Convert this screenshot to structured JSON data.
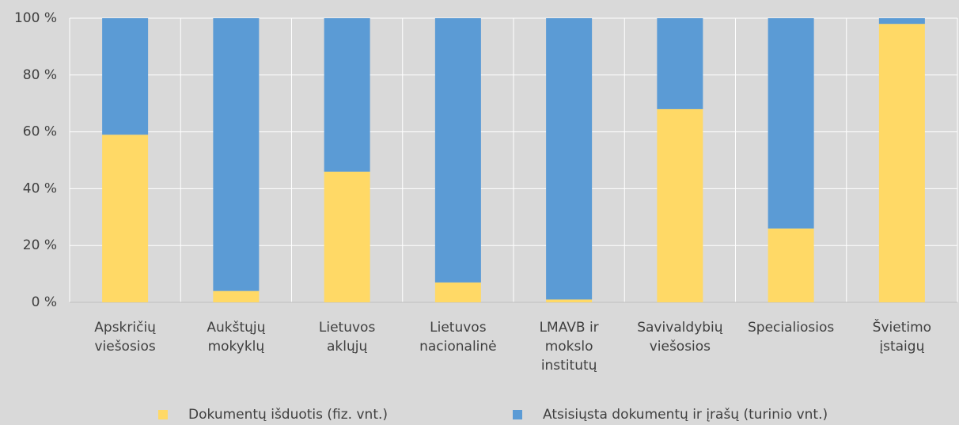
{
  "chart_data": {
    "type": "stacked_bar",
    "categories": [
      "Apskričių\nviešosios",
      "Aukštųjų\nmokyklų",
      "Lietuvos\naklųjų",
      "Lietuvos\nnacionalinė",
      "LMAVB ir\nmokslo\ninstitutų",
      "Savivaldybių\nviešosios",
      "Specialiosios",
      "Švietimo\nįstaigų"
    ],
    "series": [
      {
        "name": "Dokumentų išduotis (fiz. vnt.)",
        "color": "#ffd966",
        "values": [
          59,
          4,
          46,
          7,
          1,
          68,
          26,
          98
        ]
      },
      {
        "name": "Atsisiųsta dokumentų ir įrašų (turinio vnt.)",
        "color": "#5b9bd5",
        "values": [
          41,
          96,
          54,
          93,
          99,
          32,
          74,
          2
        ]
      }
    ],
    "ylim": [
      0,
      100
    ],
    "yticks": [
      {
        "value": 0,
        "label": "0 %"
      },
      {
        "value": 20,
        "label": "20 %"
      },
      {
        "value": 40,
        "label": "40 %"
      },
      {
        "value": 60,
        "label": "60 %"
      },
      {
        "value": 80,
        "label": "80 %"
      },
      {
        "value": 100,
        "label": "100 %"
      }
    ],
    "grid": true,
    "legend": "bottom"
  }
}
